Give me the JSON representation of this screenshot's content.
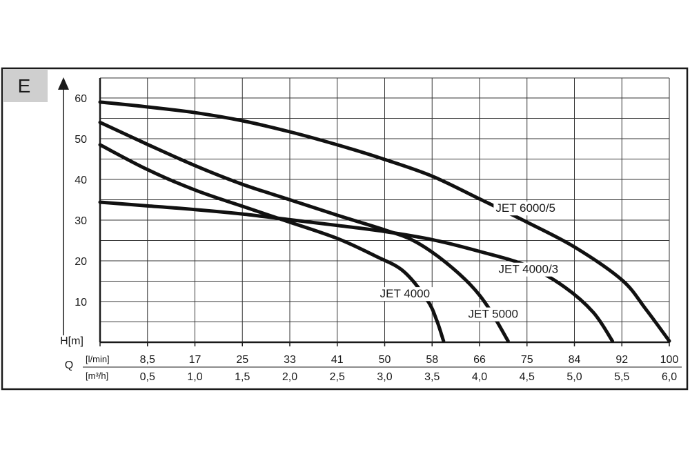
{
  "panel_tag": {
    "text": "E",
    "bg": "#cfcfcf"
  },
  "chart_data": {
    "type": "line",
    "ylabel": "H[m]",
    "xlabel": "Q",
    "x_unit_primary": "[l/min]",
    "x_unit_secondary": "[m³/h]",
    "xlim": [
      0,
      6.0
    ],
    "ylim": [
      0,
      60
    ],
    "grid": true,
    "y_ticks": [
      {
        "value": 10,
        "label": "10"
      },
      {
        "value": 20,
        "label": "20"
      },
      {
        "value": 30,
        "label": "30"
      },
      {
        "value": 40,
        "label": "40"
      },
      {
        "value": 50,
        "label": "50"
      },
      {
        "value": 60,
        "label": "60"
      }
    ],
    "x_ticks_lmin": [
      {
        "value": 0.5,
        "label": "8,5"
      },
      {
        "value": 1.0,
        "label": "17"
      },
      {
        "value": 1.5,
        "label": "25"
      },
      {
        "value": 2.0,
        "label": "33"
      },
      {
        "value": 2.5,
        "label": "41"
      },
      {
        "value": 3.0,
        "label": "50"
      },
      {
        "value": 3.5,
        "label": "58"
      },
      {
        "value": 4.0,
        "label": "66"
      },
      {
        "value": 4.5,
        "label": "75"
      },
      {
        "value": 5.0,
        "label": "84"
      },
      {
        "value": 5.5,
        "label": "92"
      },
      {
        "value": 6.0,
        "label": "100"
      }
    ],
    "x_ticks_m3h": [
      {
        "value": 0.5,
        "label": "0,5"
      },
      {
        "value": 1.0,
        "label": "1,0"
      },
      {
        "value": 1.5,
        "label": "1,5"
      },
      {
        "value": 2.0,
        "label": "2,0"
      },
      {
        "value": 2.5,
        "label": "2,5"
      },
      {
        "value": 3.0,
        "label": "3,0"
      },
      {
        "value": 3.5,
        "label": "3,5"
      },
      {
        "value": 4.0,
        "label": "4,0"
      },
      {
        "value": 4.5,
        "label": "4,5"
      },
      {
        "value": 5.0,
        "label": "5,0"
      },
      {
        "value": 5.5,
        "label": "5,5"
      },
      {
        "value": 6.0,
        "label": "6,0"
      }
    ],
    "series": [
      {
        "name": "JET 6000/5",
        "label_at": {
          "x": 4.17,
          "y": 32
        },
        "points": [
          [
            0,
            59.0
          ],
          [
            0.5,
            57.8
          ],
          [
            1.0,
            56.4
          ],
          [
            1.5,
            54.4
          ],
          [
            2.0,
            51.7
          ],
          [
            2.5,
            48.5
          ],
          [
            3.0,
            44.9
          ],
          [
            3.5,
            40.8
          ],
          [
            4.0,
            35.2
          ],
          [
            4.5,
            29.5
          ],
          [
            5.0,
            23.4
          ],
          [
            5.5,
            15.3
          ],
          [
            5.75,
            8.2
          ],
          [
            6.0,
            0.3
          ]
        ]
      },
      {
        "name": "JET 4000/3",
        "label_at": {
          "x": 4.2,
          "y": 17
        },
        "points": [
          [
            0,
            34.4
          ],
          [
            0.5,
            33.5
          ],
          [
            1.0,
            32.6
          ],
          [
            1.5,
            31.5
          ],
          [
            2.0,
            30.1
          ],
          [
            2.5,
            28.7
          ],
          [
            3.0,
            27.2
          ],
          [
            3.5,
            25.2
          ],
          [
            4.0,
            22.3
          ],
          [
            4.5,
            18.8
          ],
          [
            4.9,
            13.5
          ],
          [
            5.2,
            7.3
          ],
          [
            5.4,
            0.3
          ]
        ]
      },
      {
        "name": "JET 5000",
        "label_at": {
          "x": 3.88,
          "y": 6
        },
        "points": [
          [
            0,
            54.0
          ],
          [
            0.5,
            48.6
          ],
          [
            1.0,
            43.4
          ],
          [
            1.5,
            38.8
          ],
          [
            2.0,
            35.0
          ],
          [
            2.5,
            31.2
          ],
          [
            3.0,
            27.6
          ],
          [
            3.3,
            25.0
          ],
          [
            3.6,
            20.4
          ],
          [
            3.9,
            14.2
          ],
          [
            4.1,
            8.3
          ],
          [
            4.3,
            0.3
          ]
        ]
      },
      {
        "name": "JET 4000",
        "label_at": {
          "x": 2.95,
          "y": 11
        },
        "points": [
          [
            0,
            48.5
          ],
          [
            0.5,
            42.4
          ],
          [
            1.0,
            37.4
          ],
          [
            1.5,
            33.4
          ],
          [
            2.0,
            29.5
          ],
          [
            2.5,
            25.5
          ],
          [
            2.9,
            21.2
          ],
          [
            3.2,
            17.4
          ],
          [
            3.45,
            10.3
          ],
          [
            3.55,
            5.3
          ],
          [
            3.62,
            0.3
          ]
        ]
      }
    ]
  }
}
